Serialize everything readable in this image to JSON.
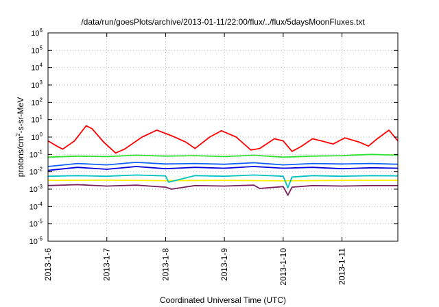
{
  "chart_data": {
    "type": "line",
    "title": "/data/run/goesPlots/archive/2013-01-11/22:00/flux/../flux/5daysMoonFluxes.txt",
    "xlabel": "Coordinated Universal Time (UTC)",
    "ylabel": {
      "prefix": "protons/cm",
      "sup": "2",
      "suffix": "-s-sr-MeV"
    },
    "y_scale": "log",
    "ylim_exponents": [
      -6,
      6
    ],
    "y_tick_base": "10",
    "y_tick_exponents": [
      "6",
      "5",
      "4",
      "3",
      "2",
      "1",
      "0",
      "-1",
      "-2",
      "-3",
      "-4",
      "-5",
      "-6"
    ],
    "xlim_days": [
      0,
      5.95
    ],
    "x_tick_labels": [
      "2013-1-6",
      "2013-1-7",
      "2013-1-8",
      "2013-1-9",
      "2013-1-10",
      "2013-1-11"
    ],
    "x_tick_days": [
      0,
      1,
      2,
      3,
      4,
      5
    ],
    "grid": true,
    "legend": "none",
    "series": [
      {
        "color": "#ffee00",
        "values": [
          [
            0,
            0.0032
          ],
          [
            1,
            0.0033
          ],
          [
            2,
            0.0031
          ],
          [
            3,
            0.0032
          ],
          [
            4,
            0.003
          ],
          [
            5,
            0.0032
          ],
          [
            5.95,
            0.0032
          ]
        ]
      },
      {
        "color": "#7a1f5c",
        "values": [
          [
            0,
            0.0016
          ],
          [
            0.5,
            0.0018
          ],
          [
            1,
            0.0015
          ],
          [
            1.5,
            0.0017
          ],
          [
            2,
            0.0013
          ],
          [
            2.1,
            0.001
          ],
          [
            2.5,
            0.0016
          ],
          [
            3,
            0.0015
          ],
          [
            3.5,
            0.0017
          ],
          [
            3.6,
            0.0011
          ],
          [
            4,
            0.0014
          ],
          [
            4.08,
            0.00045
          ],
          [
            4.15,
            0.0013
          ],
          [
            4.5,
            0.0016
          ],
          [
            5,
            0.0015
          ],
          [
            5.5,
            0.0016
          ],
          [
            5.95,
            0.0016
          ]
        ]
      },
      {
        "color": "#00c0c0",
        "values": [
          [
            0,
            0.0055
          ],
          [
            0.5,
            0.006
          ],
          [
            1,
            0.0055
          ],
          [
            1.5,
            0.0065
          ],
          [
            2,
            0.0058
          ],
          [
            2.05,
            0.0025
          ],
          [
            2.5,
            0.006
          ],
          [
            3,
            0.0055
          ],
          [
            3.5,
            0.0065
          ],
          [
            4,
            0.0055
          ],
          [
            4.08,
            0.0012
          ],
          [
            4.15,
            0.005
          ],
          [
            4.5,
            0.006
          ],
          [
            5,
            0.0055
          ],
          [
            5.5,
            0.006
          ],
          [
            5.95,
            0.0058
          ]
        ]
      },
      {
        "color": "#0000dd",
        "values": [
          [
            0,
            0.012
          ],
          [
            0.5,
            0.018
          ],
          [
            1,
            0.014
          ],
          [
            1.5,
            0.02
          ],
          [
            2,
            0.015
          ],
          [
            2.5,
            0.018
          ],
          [
            3,
            0.016
          ],
          [
            3.5,
            0.02
          ],
          [
            4,
            0.016
          ],
          [
            4.5,
            0.018
          ],
          [
            5,
            0.015
          ],
          [
            5.5,
            0.017
          ],
          [
            5.95,
            0.016
          ]
        ]
      },
      {
        "color": "#1060ff",
        "values": [
          [
            0,
            0.02
          ],
          [
            0.5,
            0.03
          ],
          [
            1,
            0.025
          ],
          [
            1.5,
            0.035
          ],
          [
            2,
            0.028
          ],
          [
            2.5,
            0.03
          ],
          [
            3,
            0.027
          ],
          [
            3.5,
            0.033
          ],
          [
            4,
            0.025
          ],
          [
            4.5,
            0.03
          ],
          [
            5,
            0.028
          ],
          [
            5.5,
            0.03
          ],
          [
            5.95,
            0.027
          ]
        ]
      },
      {
        "color": "#30e030",
        "values": [
          [
            0,
            0.07
          ],
          [
            0.5,
            0.08
          ],
          [
            1,
            0.075
          ],
          [
            1.5,
            0.09
          ],
          [
            2,
            0.08
          ],
          [
            2.5,
            0.085
          ],
          [
            3,
            0.075
          ],
          [
            3.5,
            0.09
          ],
          [
            4,
            0.07
          ],
          [
            4.5,
            0.08
          ],
          [
            5,
            0.085
          ],
          [
            5.5,
            0.1
          ],
          [
            5.95,
            0.09
          ]
        ]
      },
      {
        "color": "#ff0000",
        "values": [
          [
            0,
            0.6
          ],
          [
            0.15,
            0.3
          ],
          [
            0.25,
            0.2
          ],
          [
            0.45,
            0.6
          ],
          [
            0.65,
            4.5
          ],
          [
            0.75,
            3.0
          ],
          [
            0.95,
            0.5
          ],
          [
            1.15,
            0.12
          ],
          [
            1.3,
            0.2
          ],
          [
            1.6,
            1.0
          ],
          [
            1.85,
            2.5
          ],
          [
            2.1,
            1.2
          ],
          [
            2.35,
            0.5
          ],
          [
            2.5,
            0.22
          ],
          [
            2.75,
            1.0
          ],
          [
            2.95,
            2.3
          ],
          [
            3.2,
            1.0
          ],
          [
            3.45,
            0.18
          ],
          [
            3.6,
            0.22
          ],
          [
            3.85,
            0.8
          ],
          [
            4.0,
            0.6
          ],
          [
            4.15,
            0.15
          ],
          [
            4.3,
            0.28
          ],
          [
            4.5,
            0.8
          ],
          [
            4.65,
            0.6
          ],
          [
            4.85,
            0.4
          ],
          [
            5.05,
            0.9
          ],
          [
            5.3,
            0.5
          ],
          [
            5.45,
            0.3
          ],
          [
            5.6,
            0.8
          ],
          [
            5.8,
            2.5
          ],
          [
            5.95,
            0.6
          ]
        ]
      }
    ]
  }
}
